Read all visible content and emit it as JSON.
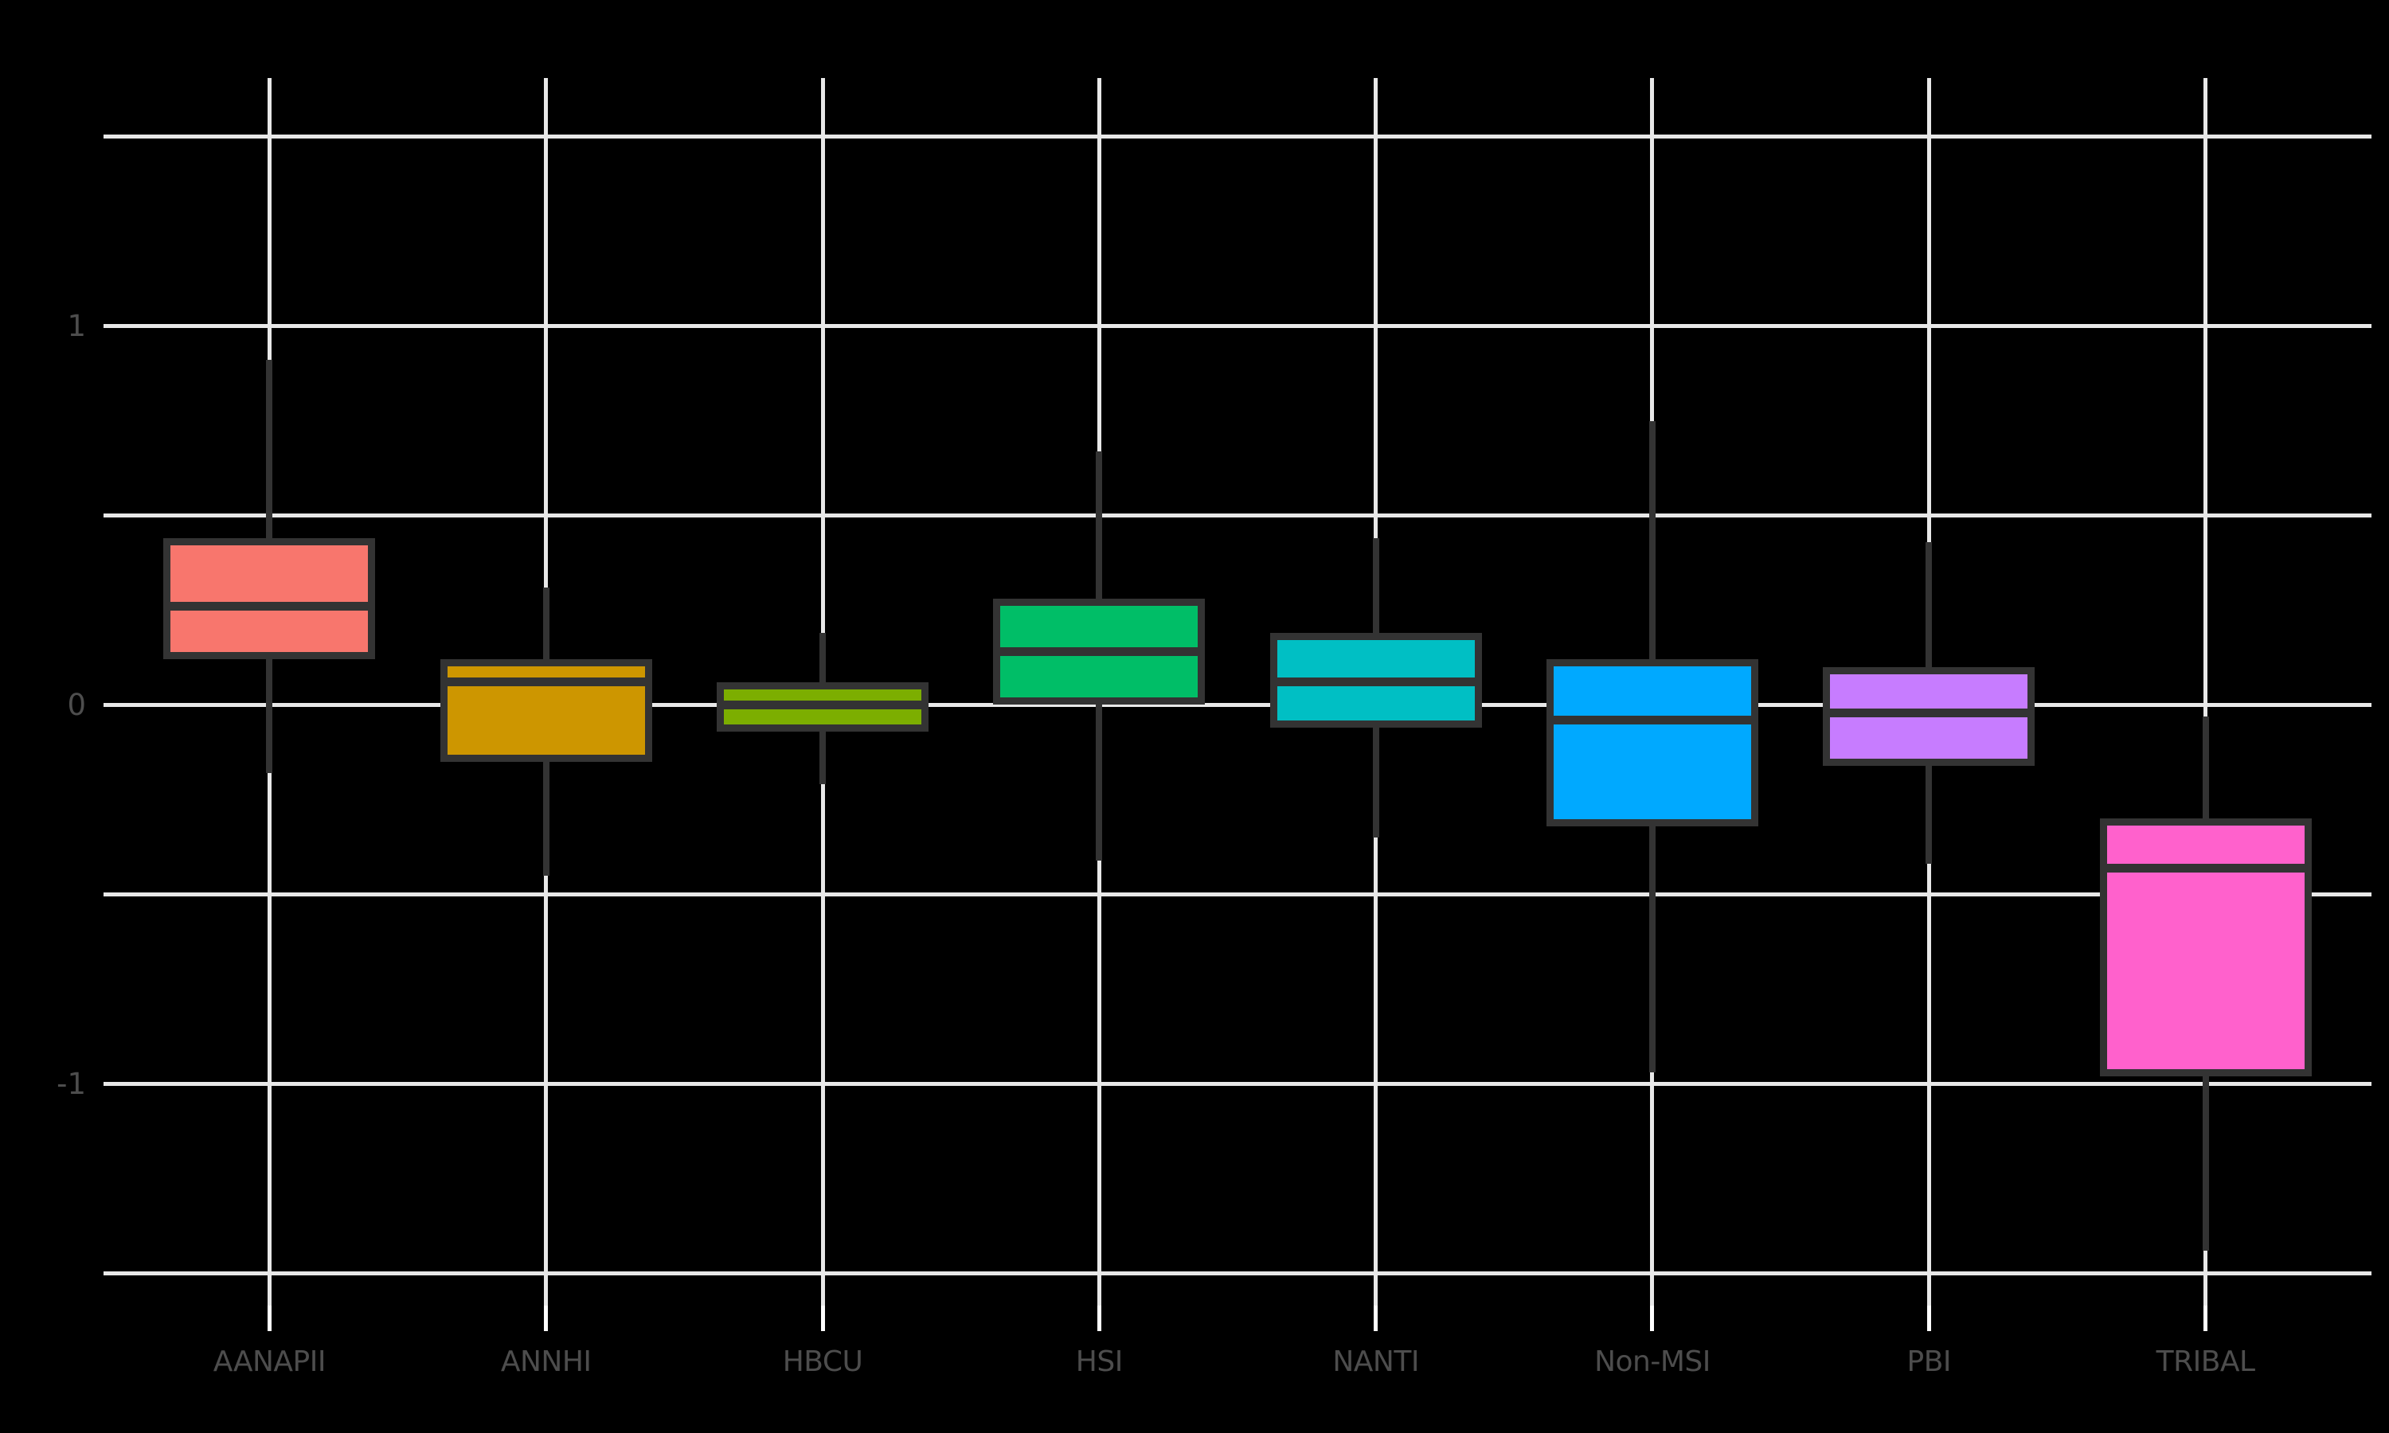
{
  "chart_data": {
    "type": "box",
    "title": "",
    "xlabel": "",
    "ylabel": "",
    "legend": "none",
    "grid": "white gridlines on black panel, major and minor",
    "categories": [
      "AANAPII",
      "ANNHI",
      "HBCU",
      "HSI",
      "NANTI",
      "Non-MSI",
      "PBI",
      "TRIBAL"
    ],
    "ylim": [
      -1.59,
      1.66
    ],
    "y_tick_labels": [
      {
        "value": 1,
        "label": "1"
      },
      {
        "value": 0,
        "label": "0"
      },
      {
        "value": -1,
        "label": "-1"
      }
    ],
    "y_minor_ticks": [
      1.5,
      0.5,
      -0.5,
      -1.5
    ],
    "boxes": [
      {
        "category": "AANAPII",
        "color": "#F8766D",
        "whisker_low": -0.18,
        "q1": 0.12,
        "median": 0.26,
        "q3": 0.44,
        "whisker_high": 0.91
      },
      {
        "category": "ANNHI",
        "color": "#CD9600",
        "whisker_low": -0.45,
        "q1": -0.15,
        "median": 0.06,
        "q3": 0.12,
        "whisker_high": 0.31
      },
      {
        "category": "HBCU",
        "color": "#7CAE00",
        "whisker_low": -0.21,
        "q1": -0.07,
        "median": 0.0,
        "q3": 0.06,
        "whisker_high": 0.19
      },
      {
        "category": "HSI",
        "color": "#00BE67",
        "whisker_low": -0.41,
        "q1": 0.0,
        "median": 0.14,
        "q3": 0.28,
        "whisker_high": 0.67
      },
      {
        "category": "NANTI",
        "color": "#00BFC4",
        "whisker_low": -0.35,
        "q1": -0.06,
        "median": 0.06,
        "q3": 0.19,
        "whisker_high": 0.44
      },
      {
        "category": "Non-MSI",
        "color": "#00A9FF",
        "whisker_low": -0.97,
        "q1": -0.32,
        "median": -0.04,
        "q3": 0.12,
        "whisker_high": 0.75
      },
      {
        "category": "PBI",
        "color": "#C77CFF",
        "whisker_low": -0.42,
        "q1": -0.16,
        "median": -0.02,
        "q3": 0.1,
        "whisker_high": 0.43
      },
      {
        "category": "TRIBAL",
        "color": "#FF61CC",
        "whisker_low": -1.44,
        "q1": -0.98,
        "median": -0.43,
        "q3": -0.3,
        "whisker_high": -0.03
      }
    ],
    "colors": {
      "background": "#000000",
      "gridline": "#E8E8E8",
      "tick": "#FFFFFF",
      "axis_text": "#4D4D4D",
      "box_border": "#333333"
    }
  }
}
